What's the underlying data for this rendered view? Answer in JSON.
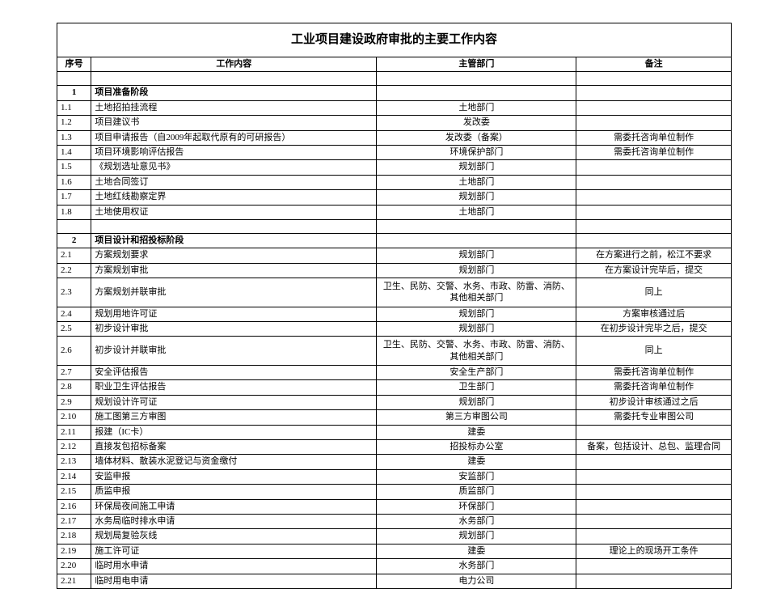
{
  "title": "工业项目建设政府审批的主要工作内容",
  "headers": {
    "idx": "序号",
    "work": "工作内容",
    "dept": "主管部门",
    "note": "备注"
  },
  "sections": [
    {
      "idx": "1",
      "label": "项目准备阶段",
      "rows": [
        {
          "idx": "1.1",
          "work": "土地招拍挂流程",
          "dept": "土地部门",
          "note": ""
        },
        {
          "idx": "1.2",
          "work": "项目建议书",
          "dept": "发改委",
          "note": ""
        },
        {
          "idx": "1.3",
          "work": "项目申请报告（自2009年起取代原有的可研报告）",
          "dept": "发改委（备案）",
          "note": "需委托咨询单位制作"
        },
        {
          "idx": "1.4",
          "work": "项目环境影响评估报告",
          "dept": "环境保护部门",
          "note": "需委托咨询单位制作"
        },
        {
          "idx": "1.5",
          "work": "《规划选址意见书》",
          "dept": "规划部门",
          "note": ""
        },
        {
          "idx": "1.6",
          "work": "土地合同签订",
          "dept": "土地部门",
          "note": ""
        },
        {
          "idx": "1.7",
          "work": "土地红线勘察定界",
          "dept": "规划部门",
          "note": ""
        },
        {
          "idx": "1.8",
          "work": "土地使用权证",
          "dept": "土地部门",
          "note": ""
        }
      ]
    },
    {
      "idx": "2",
      "label": "项目设计和招投标阶段",
      "rows": [
        {
          "idx": "2.1",
          "work": "方案规划要求",
          "dept": "规划部门",
          "note": "在方案进行之前，松江不要求"
        },
        {
          "idx": "2.2",
          "work": "方案规划审批",
          "dept": "规划部门",
          "note": "在方案设计完毕后，提交"
        },
        {
          "idx": "2.3",
          "work": "方案规划并联审批",
          "dept": "卫生、民防、交警、水务、市政、防雷、消防、其他相关部门",
          "note": "同上",
          "tall": true
        },
        {
          "idx": "2.4",
          "work": "规划用地许可证",
          "dept": "规划部门",
          "note": "方案审核通过后"
        },
        {
          "idx": "2.5",
          "work": "初步设计审批",
          "dept": "规划部门",
          "note": "在初步设计完毕之后，提交"
        },
        {
          "idx": "2.6",
          "work": "初步设计并联审批",
          "dept": "卫生、民防、交警、水务、市政、防雷、消防、其他相关部门",
          "note": "同上",
          "tall": true
        },
        {
          "idx": "2.7",
          "work": "安全评估报告",
          "dept": "安全生产部门",
          "note": "需委托咨询单位制作"
        },
        {
          "idx": "2.8",
          "work": "职业卫生评估报告",
          "dept": "卫生部门",
          "note": "需委托咨询单位制作"
        },
        {
          "idx": "2.9",
          "work": "规划设计许可证",
          "dept": "规划部门",
          "note": "初步设计审核通过之后"
        },
        {
          "idx": "2.10",
          "work": "施工图第三方审图",
          "dept": "第三方审图公司",
          "note": "需委托专业审图公司"
        },
        {
          "idx": "2.11",
          "work": "报建（IC卡）",
          "dept": "建委",
          "note": ""
        },
        {
          "idx": "2.12",
          "work": "直接发包招标备案",
          "dept": "招投标办公室",
          "note": "备案，包括设计、总包、监理合同"
        },
        {
          "idx": "2.13",
          "work": "墙体材料、散装水泥登记与资金缴付",
          "dept": "建委",
          "note": ""
        },
        {
          "idx": "2.14",
          "work": "安监申报",
          "dept": "安监部门",
          "note": ""
        },
        {
          "idx": "2.15",
          "work": "质监申报",
          "dept": "质监部门",
          "note": ""
        },
        {
          "idx": "2.16",
          "work": "环保局夜间施工申请",
          "dept": "环保部门",
          "note": ""
        },
        {
          "idx": "2.17",
          "work": "水务局临时排水申请",
          "dept": "水务部门",
          "note": ""
        },
        {
          "idx": "2.18",
          "work": "规划局复验灰线",
          "dept": "规划部门",
          "note": ""
        },
        {
          "idx": "2.19",
          "work": "施工许可证",
          "dept": "建委",
          "note": "理论上的现场开工条件"
        },
        {
          "idx": "2.20",
          "work": "临时用水申请",
          "dept": "水务部门",
          "note": ""
        },
        {
          "idx": "2.21",
          "work": "临时用电申请",
          "dept": "电力公司",
          "note": ""
        }
      ]
    }
  ]
}
